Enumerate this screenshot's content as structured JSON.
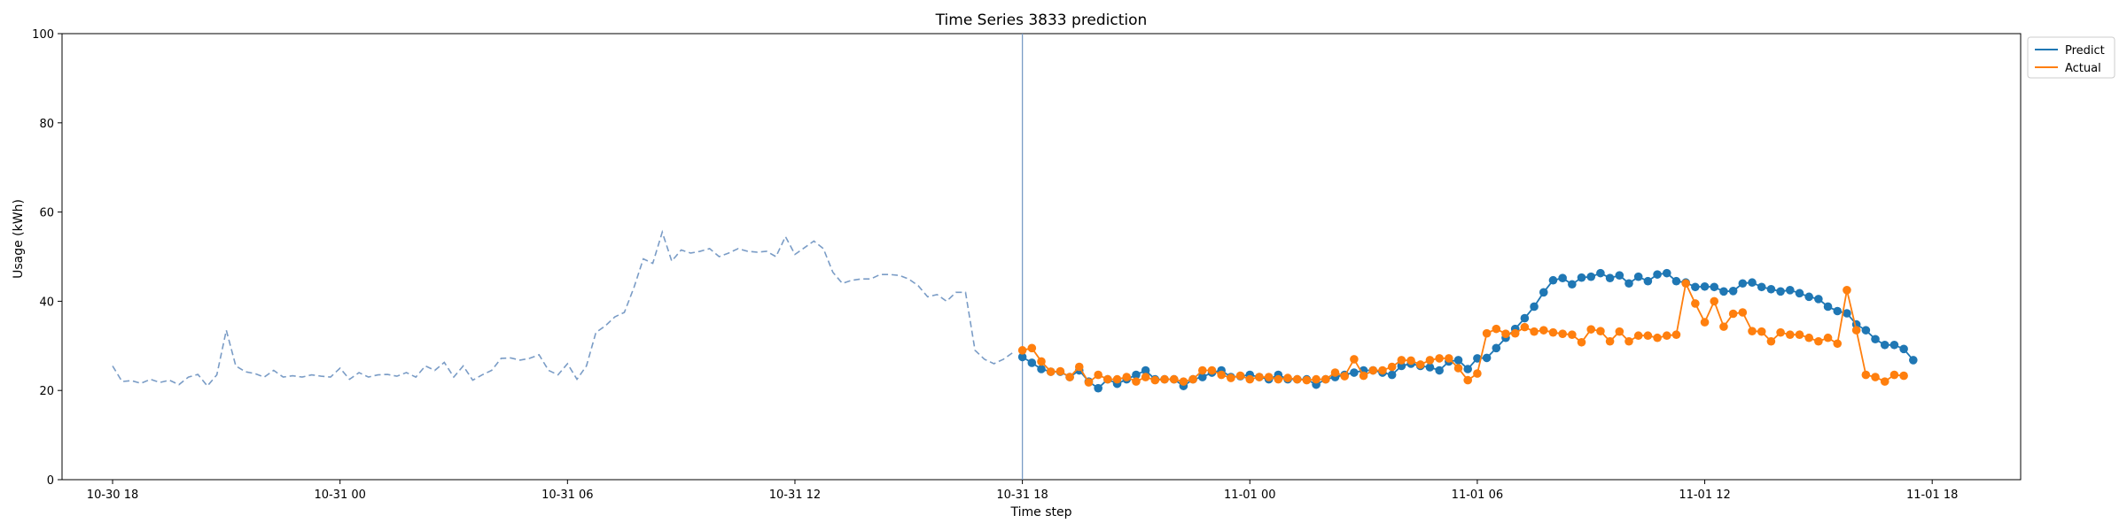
{
  "chart_data": {
    "type": "line",
    "title": "Time Series 3833 prediction",
    "xlabel": "Time step",
    "ylabel": "Usage (kWh)",
    "ylim": [
      0,
      100
    ],
    "yticks": [
      0,
      20,
      40,
      60,
      80,
      100
    ],
    "xlim": [
      "2023-10-30 16:40",
      "2023-11-01 20:20"
    ],
    "xticks": [
      {
        "t": "2023-10-30 18:00",
        "label": "10-30 18"
      },
      {
        "t": "2023-10-31 00:00",
        "label": "10-31 00"
      },
      {
        "t": "2023-10-31 06:00",
        "label": "10-31 06"
      },
      {
        "t": "2023-10-31 12:00",
        "label": "10-31 12"
      },
      {
        "t": "2023-10-31 18:00",
        "label": "10-31 18"
      },
      {
        "t": "2023-11-01 00:00",
        "label": "11-01 00"
      },
      {
        "t": "2023-11-01 06:00",
        "label": "11-01 06"
      },
      {
        "t": "2023-11-01 12:00",
        "label": "11-01 12"
      },
      {
        "t": "2023-11-01 18:00",
        "label": "11-01 18"
      }
    ],
    "grid": false,
    "legend_position": "top-right outside",
    "forecast_start": "2023-10-31 18:00",
    "history": {
      "start": "2023-10-30 18:00",
      "step_minutes": 15,
      "style": "dashed",
      "color": "#7a9cc6",
      "values": [
        25.5,
        22,
        22.2,
        21.6,
        22.5,
        21.8,
        22.3,
        21.3,
        23,
        23.6,
        21,
        23.5,
        33.5,
        25.5,
        24.2,
        23.8,
        23,
        24.5,
        23,
        23.3,
        23,
        23.5,
        23.2,
        23,
        25,
        22.5,
        24,
        23,
        23.5,
        23.6,
        23.2,
        24,
        23,
        25.5,
        24.5,
        26.3,
        23,
        25.5,
        22.3,
        23.5,
        24.5,
        27.2,
        27.3,
        26.8,
        27.2,
        28,
        24.5,
        23.5,
        26,
        22.5,
        25.5,
        33,
        34.5,
        36.5,
        37.5,
        43,
        49.5,
        48.5,
        55.5,
        49,
        51.5,
        50.8,
        51.2,
        51.8,
        50,
        50.8,
        51.8,
        51.2,
        51,
        51.2,
        50,
        54.5,
        50.5,
        52,
        53.5,
        51.8,
        46.5,
        44,
        44.7,
        45,
        45,
        46,
        46,
        45.8,
        45,
        43.5,
        41,
        41.5,
        40,
        42,
        42,
        29,
        27,
        26,
        27,
        28.5
      ]
    },
    "series": [
      {
        "name": "Predict",
        "color": "#1f77b4",
        "start": "2023-10-31 18:00",
        "step_minutes": 15,
        "values": [
          27.5,
          26.2,
          24.8,
          24.2,
          24.2,
          23,
          24.5,
          22,
          20.5,
          22.5,
          21.5,
          22.5,
          23.5,
          24.5,
          22.5,
          22.5,
          22.5,
          21,
          22.5,
          23,
          24,
          24.5,
          23,
          23.2,
          23.5,
          23,
          22.5,
          23.5,
          22.5,
          22.5,
          22.5,
          21.3,
          22.5,
          23,
          23.5,
          24,
          24.5,
          24.5,
          24,
          23.5,
          25.5,
          26,
          25.5,
          25.2,
          24.5,
          26.5,
          26.8,
          24.8,
          27.2,
          27.3,
          29.5,
          31.8,
          33.8,
          36.2,
          38.8,
          42,
          44.7,
          45.2,
          43.8,
          45.3,
          45.5,
          46.3,
          45.2,
          45.8,
          44,
          45.5,
          44.5,
          46,
          46.3,
          44.5,
          44.2,
          43.2,
          43.3,
          43.2,
          42.2,
          42.3,
          44,
          44.2,
          43.2,
          42.7,
          42.2,
          42.5,
          41.8,
          41,
          40.5,
          38.8,
          37.8,
          37.3,
          34.8,
          33.5,
          31.5,
          30.2,
          30.2,
          29.3,
          26.8
        ]
      },
      {
        "name": "Actual",
        "color": "#ff7f0e",
        "start": "2023-10-31 18:00",
        "step_minutes": 15,
        "values": [
          29,
          29.5,
          26.5,
          24.2,
          24.3,
          23,
          25.3,
          21.8,
          23.5,
          22.5,
          22.5,
          23,
          22,
          23,
          22.3,
          22.5,
          22.5,
          22,
          22.5,
          24.5,
          24.5,
          23.5,
          22.8,
          23.3,
          22.5,
          23,
          23,
          22.5,
          22.8,
          22.5,
          22.3,
          22.5,
          22.5,
          24,
          23.2,
          27,
          23.3,
          24.5,
          24.5,
          25.3,
          26.8,
          26.7,
          25.8,
          26.8,
          27.2,
          27.2,
          25,
          22.3,
          23.8,
          32.8,
          33.8,
          32.7,
          32.8,
          34.2,
          33.2,
          33.5,
          33,
          32.7,
          32.5,
          30.8,
          33.7,
          33.3,
          31,
          33.2,
          31,
          32.3,
          32.3,
          31.8,
          32.3,
          32.5,
          44,
          39.5,
          35.3,
          40,
          34.3,
          37.2,
          37.5,
          33.3,
          33.2,
          31,
          33,
          32.5,
          32.5,
          31.8,
          31,
          31.8,
          30.5,
          42.5,
          33.5,
          23.5,
          23,
          22,
          23.5,
          23.3
        ]
      }
    ]
  }
}
